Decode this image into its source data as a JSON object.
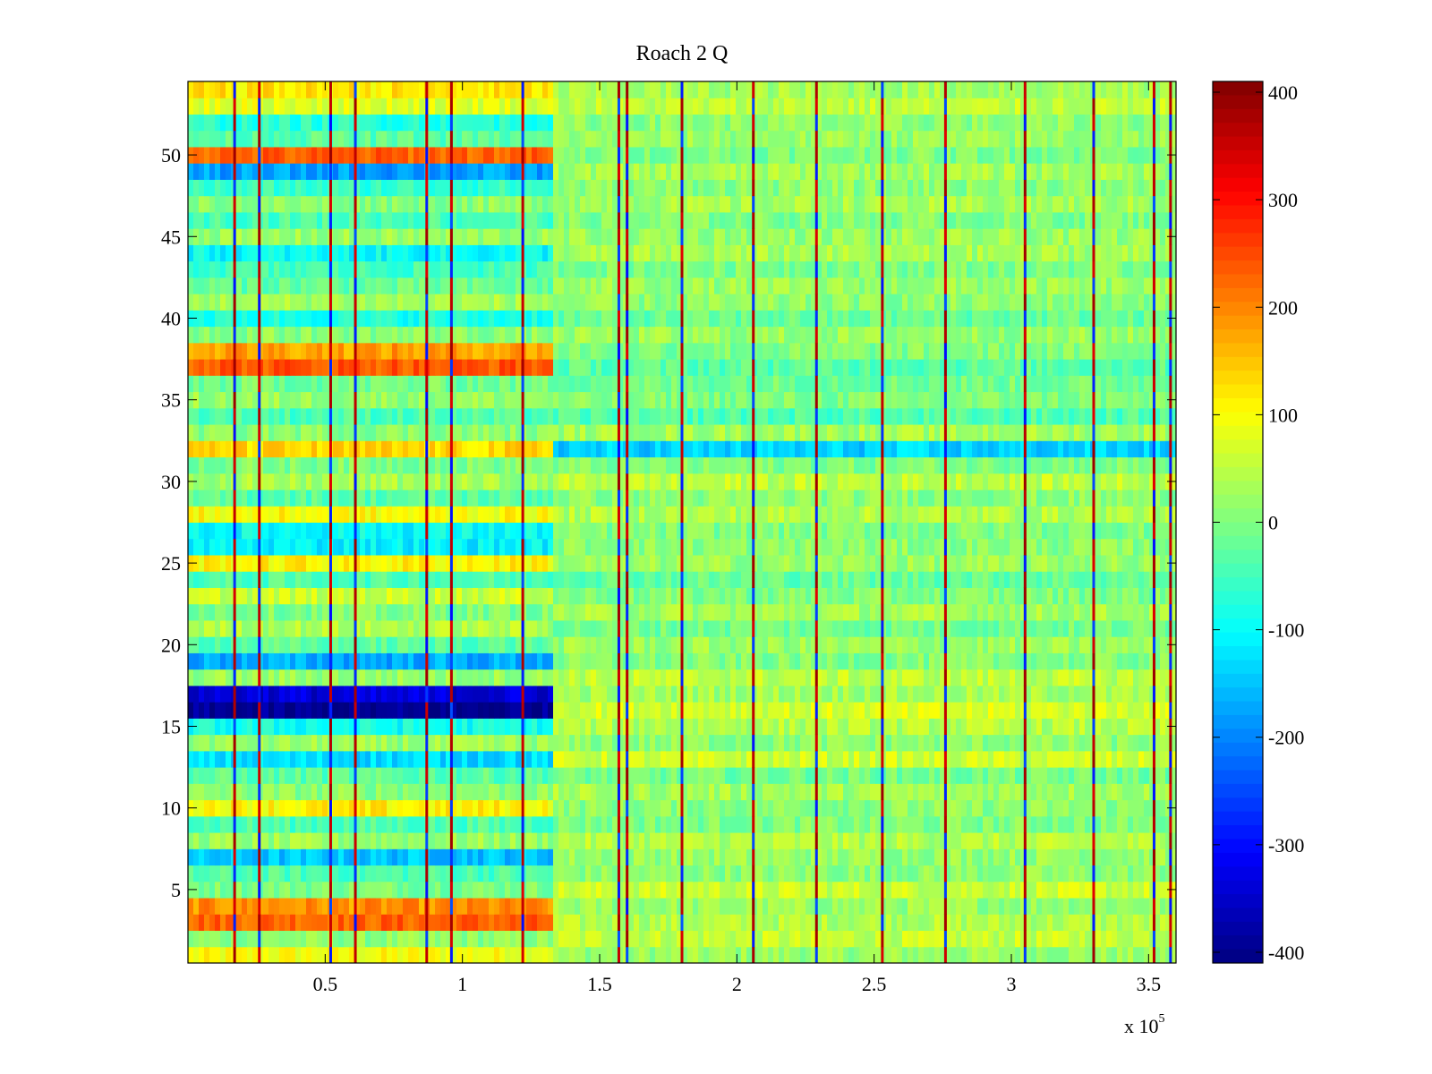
{
  "chart_data": {
    "type": "heatmap",
    "title": "Roach 2 Q",
    "colormap": "jet",
    "x_ticks": [
      "0.5",
      "1",
      "1.5",
      "2",
      "2.5",
      "3",
      "3.5"
    ],
    "x_tick_values": [
      50000,
      100000,
      150000,
      200000,
      250000,
      300000,
      350000
    ],
    "x_exponent_base": "x 10",
    "x_exponent_power": "5",
    "xlim": [
      0,
      360000
    ],
    "y_ticks": [
      "5",
      "10",
      "15",
      "20",
      "25",
      "30",
      "35",
      "40",
      "45",
      "50"
    ],
    "y_tick_values": [
      5,
      10,
      15,
      20,
      25,
      30,
      35,
      40,
      45,
      50
    ],
    "ylim": [
      0.5,
      54.5
    ],
    "colorbar_ticks": [
      "400",
      "300",
      "200",
      "100",
      "0",
      "-100",
      "-200",
      "-300",
      "-400"
    ],
    "colorbar_tick_values": [
      400,
      300,
      200,
      100,
      0,
      -100,
      -200,
      -300,
      -400
    ],
    "clim": [
      -410,
      410
    ],
    "segment_boundary_x": 133000,
    "rows": [
      {
        "row": 1,
        "early": 95,
        "late": 20
      },
      {
        "row": 2,
        "early": 10,
        "late": 55
      },
      {
        "row": 3,
        "early": 230,
        "late": 40
      },
      {
        "row": 4,
        "early": 190,
        "late": 20
      },
      {
        "row": 5,
        "early": 0,
        "late": 60
      },
      {
        "row": 6,
        "early": -40,
        "late": 10
      },
      {
        "row": 7,
        "early": -150,
        "late": 20
      },
      {
        "row": 8,
        "early": 20,
        "late": 40
      },
      {
        "row": 9,
        "early": -40,
        "late": 0
      },
      {
        "row": 10,
        "early": 110,
        "late": 10
      },
      {
        "row": 11,
        "early": 10,
        "late": 30
      },
      {
        "row": 12,
        "early": -30,
        "late": -10
      },
      {
        "row": 13,
        "early": -130,
        "late": 60
      },
      {
        "row": 14,
        "early": 20,
        "late": 10
      },
      {
        "row": 15,
        "early": -90,
        "late": 40
      },
      {
        "row": 16,
        "early": -400,
        "late": 70
      },
      {
        "row": 17,
        "early": -340,
        "late": 30
      },
      {
        "row": 18,
        "early": 20,
        "late": 50
      },
      {
        "row": 19,
        "early": -170,
        "late": 0
      },
      {
        "row": 20,
        "early": -30,
        "late": 20
      },
      {
        "row": 21,
        "early": 40,
        "late": -10
      },
      {
        "row": 22,
        "early": 0,
        "late": 30
      },
      {
        "row": 23,
        "early": 60,
        "late": 0
      },
      {
        "row": 24,
        "early": -40,
        "late": -20
      },
      {
        "row": 25,
        "early": 110,
        "late": 20
      },
      {
        "row": 26,
        "early": -110,
        "late": 10
      },
      {
        "row": 27,
        "early": -100,
        "late": 0
      },
      {
        "row": 28,
        "early": 100,
        "late": 40
      },
      {
        "row": 29,
        "early": -30,
        "late": 10
      },
      {
        "row": 30,
        "early": 30,
        "late": 50
      },
      {
        "row": 31,
        "early": 0,
        "late": 0
      },
      {
        "row": 32,
        "early": 130,
        "late": -140
      },
      {
        "row": 33,
        "early": 10,
        "late": 30
      },
      {
        "row": 34,
        "early": -40,
        "late": -40
      },
      {
        "row": 35,
        "early": 20,
        "late": 0
      },
      {
        "row": 36,
        "early": -10,
        "late": -10
      },
      {
        "row": 37,
        "early": 240,
        "late": -30
      },
      {
        "row": 38,
        "early": 180,
        "late": 0
      },
      {
        "row": 39,
        "early": 10,
        "late": 20
      },
      {
        "row": 40,
        "early": -80,
        "late": -20
      },
      {
        "row": 41,
        "early": 30,
        "late": 10
      },
      {
        "row": 42,
        "early": -20,
        "late": 20
      },
      {
        "row": 43,
        "early": -50,
        "late": 0
      },
      {
        "row": 44,
        "early": -100,
        "late": 30
      },
      {
        "row": 45,
        "early": 20,
        "late": 20
      },
      {
        "row": 46,
        "early": -40,
        "late": 0
      },
      {
        "row": 47,
        "early": 10,
        "late": 30
      },
      {
        "row": 48,
        "early": -60,
        "late": 10
      },
      {
        "row": 49,
        "early": -180,
        "late": 30
      },
      {
        "row": 50,
        "early": 230,
        "late": 0
      },
      {
        "row": 51,
        "early": -30,
        "late": 20
      },
      {
        "row": 52,
        "early": -70,
        "late": 10
      },
      {
        "row": 53,
        "early": 80,
        "late": 50
      },
      {
        "row": 54,
        "early": 120,
        "late": 30
      }
    ],
    "spike_x": [
      17000,
      26000,
      52000,
      61000,
      87000,
      96000,
      122000,
      157000,
      160000,
      180000,
      206000,
      229000,
      253000,
      276000,
      305000,
      330000,
      352000,
      358000
    ]
  }
}
